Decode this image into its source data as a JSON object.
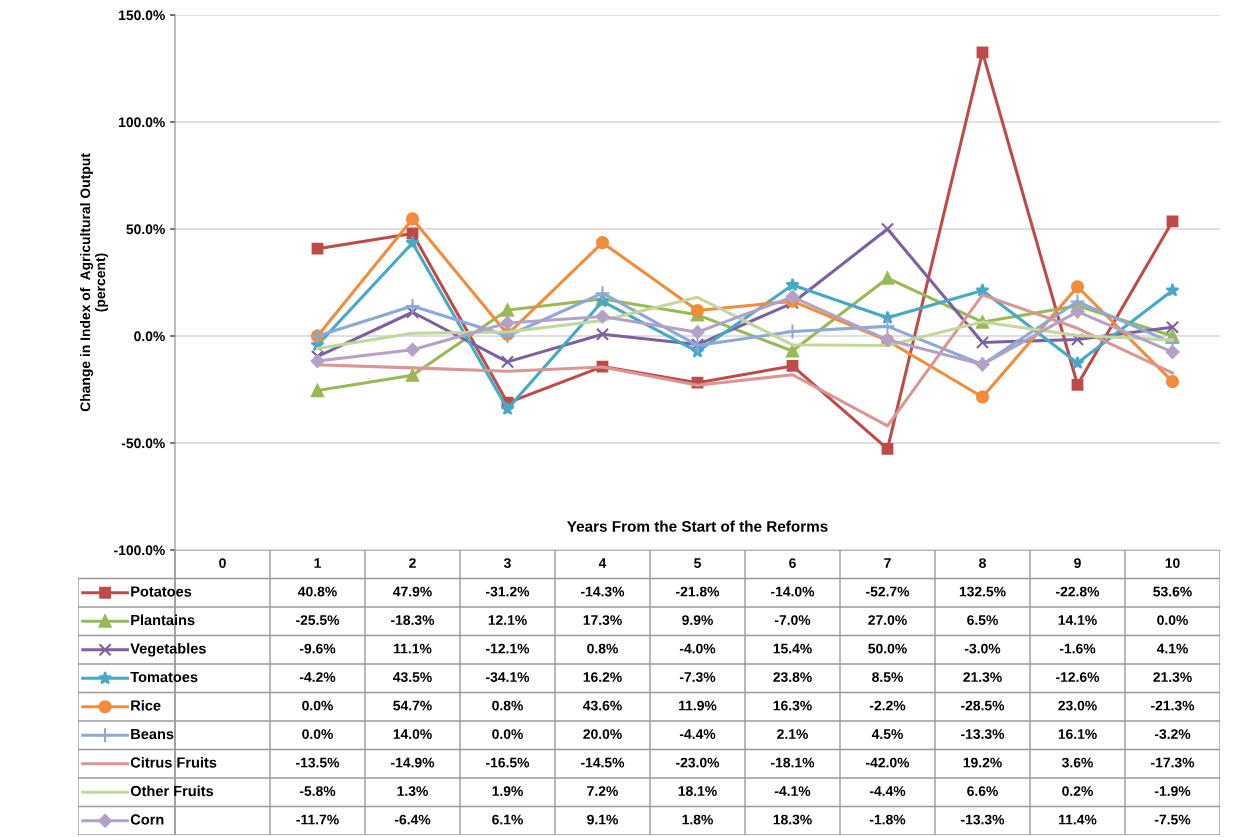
{
  "chart_data": {
    "type": "line",
    "xlabel": "Years From the Start of the Reforms",
    "ylabel": "Change in Index of  Agricultural Output\n(percent)",
    "categories": [
      "0",
      "1",
      "2",
      "3",
      "4",
      "5",
      "6",
      "7",
      "8",
      "9",
      "10"
    ],
    "ylim": [
      -100,
      150
    ],
    "yticks": [
      {
        "value": -100,
        "label": "-100.0%"
      },
      {
        "value": -50,
        "label": "-50.0%"
      },
      {
        "value": 0,
        "label": "0.0%"
      },
      {
        "value": 50,
        "label": "50.0%"
      },
      {
        "value": 100,
        "label": "100.0%"
      },
      {
        "value": 150,
        "label": "150.0%"
      }
    ],
    "grid": "y",
    "tick_labels": "y",
    "legend": "bottom",
    "series": [
      {
        "name": "Potatoes",
        "color": "#be4b48",
        "marker": "square",
        "values": [
          null,
          40.8,
          47.9,
          -31.2,
          -14.3,
          -21.8,
          -14.0,
          -52.7,
          132.5,
          -22.8,
          53.6
        ],
        "value_labels": [
          null,
          "40.8%",
          "47.9%",
          "-31.2%",
          "-14.3%",
          "-21.8%",
          "-14.0%",
          "-52.7%",
          "132.5%",
          "-22.8%",
          "53.6%"
        ]
      },
      {
        "name": "Plantains",
        "color": "#98b954",
        "marker": "triangle",
        "values": [
          null,
          -25.5,
          -18.3,
          12.1,
          17.3,
          9.9,
          -7.0,
          27.0,
          6.5,
          14.1,
          0.0
        ],
        "value_labels": [
          null,
          "-25.5%",
          "-18.3%",
          "12.1%",
          "17.3%",
          "9.9%",
          "-7.0%",
          "27.0%",
          "6.5%",
          "14.1%",
          "0.0%"
        ]
      },
      {
        "name": "Vegetables",
        "color": "#7d60a0",
        "marker": "cross",
        "values": [
          null,
          -9.6,
          11.1,
          -12.1,
          0.8,
          -4.0,
          15.4,
          50.0,
          -3.0,
          -1.6,
          4.1
        ],
        "value_labels": [
          null,
          "-9.6%",
          "11.1%",
          "-12.1%",
          "0.8%",
          "-4.0%",
          "15.4%",
          "50.0%",
          "-3.0%",
          "-1.6%",
          "4.1%"
        ]
      },
      {
        "name": "Tomatoes",
        "color": "#46aac5",
        "marker": "star",
        "values": [
          null,
          -4.2,
          43.5,
          -34.1,
          16.2,
          -7.3,
          23.8,
          8.5,
          21.3,
          -12.6,
          21.3
        ],
        "value_labels": [
          null,
          "-4.2%",
          "43.5%",
          "-34.1%",
          "16.2%",
          "-7.3%",
          "23.8%",
          "8.5%",
          "21.3%",
          "-12.6%",
          "21.3%"
        ]
      },
      {
        "name": "Rice",
        "color": "#f08c3a",
        "marker": "circle",
        "values": [
          null,
          0.0,
          54.7,
          0.8,
          43.6,
          11.9,
          16.3,
          -2.2,
          -28.5,
          23.0,
          -21.3
        ],
        "value_labels": [
          null,
          "0.0%",
          "54.7%",
          "0.8%",
          "43.6%",
          "11.9%",
          "16.3%",
          "-2.2%",
          "-28.5%",
          "23.0%",
          "-21.3%"
        ]
      },
      {
        "name": "Beans",
        "color": "#8ea8d8",
        "marker": "plus",
        "values": [
          null,
          0.0,
          14.0,
          0.0,
          20.0,
          -4.4,
          2.1,
          4.5,
          -13.3,
          16.1,
          -3.2
        ],
        "value_labels": [
          null,
          "0.0%",
          "14.0%",
          "0.0%",
          "20.0%",
          "-4.4%",
          "2.1%",
          "4.5%",
          "-13.3%",
          "16.1%",
          "-3.2%"
        ]
      },
      {
        "name": "Citrus Fruits",
        "color": "#d99694",
        "marker": "none",
        "values": [
          null,
          -13.5,
          -14.9,
          -16.5,
          -14.5,
          -23.0,
          -18.1,
          -42.0,
          19.2,
          3.6,
          -17.3
        ],
        "value_labels": [
          null,
          "-13.5%",
          "-14.9%",
          "-16.5%",
          "-14.5%",
          "-23.0%",
          "-18.1%",
          "-42.0%",
          "19.2%",
          "3.6%",
          "-17.3%"
        ]
      },
      {
        "name": "Other Fruits",
        "color": "#c3d69b",
        "marker": "none",
        "values": [
          null,
          -5.8,
          1.3,
          1.9,
          7.2,
          18.1,
          -4.1,
          -4.4,
          6.6,
          0.2,
          -1.9
        ],
        "value_labels": [
          null,
          "-5.8%",
          "1.3%",
          "1.9%",
          "7.2%",
          "18.1%",
          "-4.1%",
          "-4.4%",
          "6.6%",
          "0.2%",
          "-1.9%"
        ]
      },
      {
        "name": "Corn",
        "color": "#b3a2c7",
        "marker": "diamond",
        "values": [
          null,
          -11.7,
          -6.4,
          6.1,
          9.1,
          1.8,
          18.3,
          -1.8,
          -13.3,
          11.4,
          -7.5
        ],
        "value_labels": [
          null,
          "-11.7%",
          "-6.4%",
          "6.1%",
          "9.1%",
          "1.8%",
          "18.3%",
          "-1.8%",
          "-13.3%",
          "11.4%",
          "-7.5%"
        ]
      }
    ]
  }
}
